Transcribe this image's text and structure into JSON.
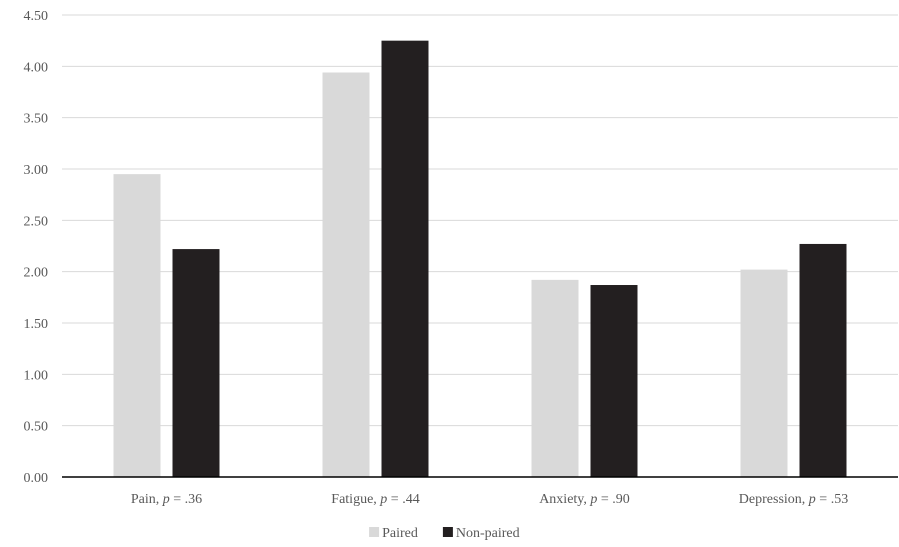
{
  "chart_data": {
    "type": "bar",
    "title": "",
    "xlabel": "",
    "ylabel": "",
    "categories": [
      {
        "name": "Pain",
        "p_label": "p",
        "p_value": " = .36"
      },
      {
        "name": "Fatigue",
        "p_label": "p",
        "p_value": " = .44"
      },
      {
        "name": "Anxiety",
        "p_label": "p",
        "p_value": " = .90"
      },
      {
        "name": "Depression",
        "p_label": "p",
        "p_value": " = .53"
      }
    ],
    "series": [
      {
        "name": "Paired",
        "color": "#d9d9d9",
        "values": [
          2.95,
          3.94,
          1.92,
          2.02
        ]
      },
      {
        "name": "Non-paired",
        "color": "#231f20",
        "values": [
          2.22,
          4.25,
          1.87,
          2.27
        ]
      }
    ],
    "ylim": [
      0,
      4.5
    ],
    "yticks": [
      "0.00",
      "0.50",
      "1.00",
      "1.50",
      "2.00",
      "2.50",
      "3.00",
      "3.50",
      "4.00",
      "4.50"
    ],
    "grid": true,
    "legend_position": "bottom-center",
    "gridline_color": "#d9d9d9",
    "axis_color": "#000000"
  }
}
